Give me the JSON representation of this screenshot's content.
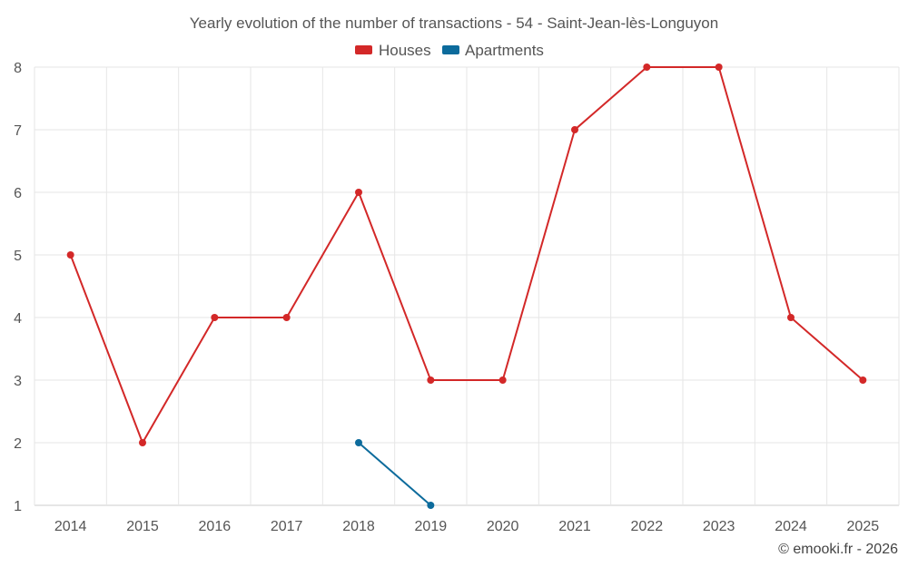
{
  "chart_data": {
    "type": "line",
    "title": "Yearly evolution of the number of transactions - 54 - Saint-Jean-lès-Longuyon",
    "categories": [
      "2014",
      "2015",
      "2016",
      "2017",
      "2018",
      "2019",
      "2020",
      "2021",
      "2022",
      "2023",
      "2024",
      "2025"
    ],
    "ylim": [
      1,
      8
    ],
    "yticks": [
      "1",
      "2",
      "3",
      "4",
      "5",
      "6",
      "7",
      "8"
    ],
    "grid": true,
    "legend_position": "top-center",
    "series": [
      {
        "name": "Houses",
        "color": "#d32828",
        "values": [
          5,
          2,
          4,
          4,
          6,
          3,
          3,
          7,
          8,
          8,
          4,
          3
        ]
      },
      {
        "name": "Apartments",
        "color": "#0c6b9c",
        "values": [
          null,
          null,
          null,
          null,
          2,
          1,
          null,
          null,
          null,
          null,
          null,
          null
        ]
      }
    ],
    "credit": "© emooki.fr - 2026"
  }
}
